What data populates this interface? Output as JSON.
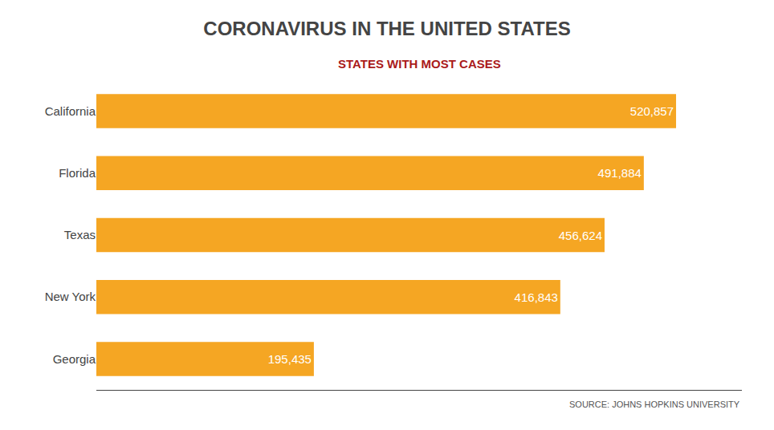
{
  "chart_data": {
    "type": "bar",
    "orientation": "horizontal",
    "title": "CORONAVIRUS IN THE UNITED STATES",
    "subtitle": "STATES WITH MOST CASES",
    "source": "SOURCE: JOHNS HOPKINS UNIVERSITY",
    "categories": [
      "California",
      "Florida",
      "Texas",
      "New York",
      "Georgia"
    ],
    "values": [
      520857,
      491884,
      456624,
      416843,
      195435
    ],
    "value_labels": [
      "520,857",
      "491,884",
      "456,624",
      "416,843",
      "195,435"
    ],
    "data_labels": true,
    "color": "#F5A623",
    "xlim": [
      0,
      580000
    ],
    "tick_labels": "y",
    "grid": false
  }
}
